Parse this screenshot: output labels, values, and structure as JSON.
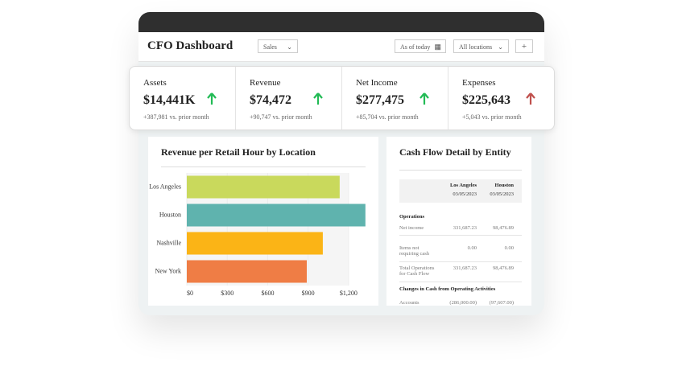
{
  "header": {
    "title": "CFO Dashboard",
    "view": "Sales",
    "date": "As of today",
    "location": "All locations",
    "add": "+"
  },
  "kpis": [
    {
      "label": "Assets",
      "value": "$14,441K",
      "change": "+387,981 vs. prior month"
    },
    {
      "label": "Revenue",
      "value": "$74,472",
      "change": "+90,747 vs. prior month"
    },
    {
      "label": "Net Income",
      "value": "$277,475",
      "change": "+85,704 vs. prior month"
    },
    {
      "label": "Expenses",
      "value": "$225,643",
      "change": "+5,043 vs. prior month"
    }
  ],
  "chart_data": {
    "type": "hbar",
    "title": "Revenue per Retail Hour by Location",
    "categories": [
      "Los Angeles",
      "Houston",
      "Nashville",
      "New York"
    ],
    "values": [
      1134,
      1325,
      1009,
      890
    ],
    "colors": [
      "#c9d95c",
      "#5fb3ae",
      "#fbb416",
      "#ef7d45"
    ],
    "xlim": [
      0,
      1350
    ],
    "xticks": [
      {
        "value": 0,
        "label": "$0"
      },
      {
        "value": 300,
        "label": "$300"
      },
      {
        "value": 600,
        "label": "$600"
      },
      {
        "value": 900,
        "label": "$900"
      },
      {
        "value": 1200,
        "label": "$1,200"
      }
    ]
  },
  "cashflow": {
    "title": "Cash Flow Detail by Entity",
    "columns": [
      {
        "name": "Los Angeles",
        "date": "03/05/2023"
      },
      {
        "name": "Houston",
        "date": "03/05/2023"
      }
    ],
    "section1": "Operations",
    "rows": [
      [
        "Net income",
        "331,687.23",
        "98,476.89"
      ],
      [
        "Items not requiring cash",
        "0.00",
        "0.00"
      ],
      [
        "Total Operations for Cash Flow",
        "331,687.23",
        "98,476.89"
      ]
    ],
    "section2": "Changes in Cash from Operating Activities",
    "row_last": [
      "Accounts",
      "(286,000.00)",
      "(97,607.00)"
    ]
  }
}
